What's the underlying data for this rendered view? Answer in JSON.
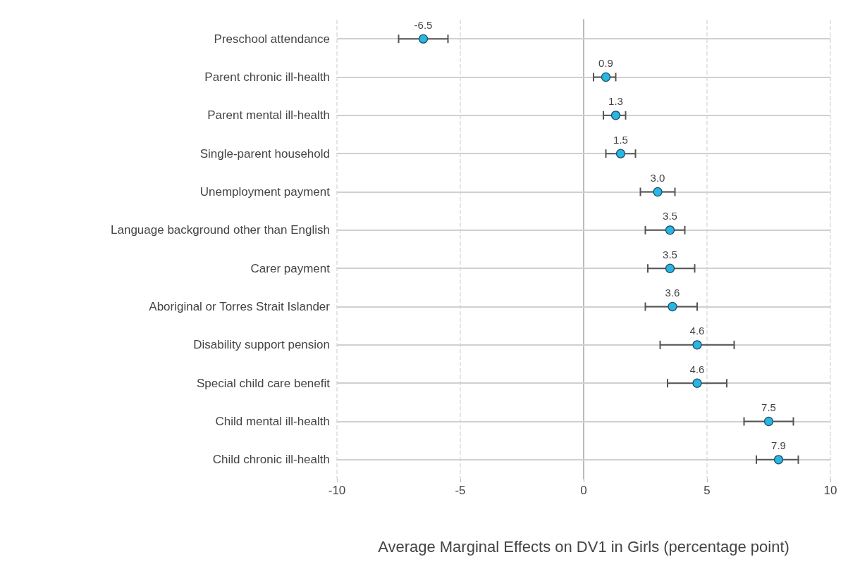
{
  "chart_data": {
    "type": "scatter",
    "orientation": "horizontal",
    "xlabel": "Average Marginal Effects on DV1 in Girls (percentage point)",
    "categories": [
      "Preschool attendance",
      "Parent chronic ill-health",
      "Parent mental ill-health",
      "Single-parent household",
      "Unemployment payment",
      "Language background other than English",
      "Carer payment",
      "Aboriginal or Torres Strait Islander",
      "Disability support pension",
      "Special child care benefit",
      "Child mental ill-health",
      "Child chronic ill-health"
    ],
    "values": [
      -6.5,
      0.9,
      1.3,
      1.5,
      3.0,
      3.5,
      3.5,
      3.6,
      4.6,
      4.6,
      7.5,
      7.9
    ],
    "value_labels": [
      "-6.5",
      "0.9",
      "1.3",
      "1.5",
      "3.0",
      "3.5",
      "3.5",
      "3.6",
      "4.6",
      "4.6",
      "7.5",
      "7.9"
    ],
    "errors": [
      [
        -7.5,
        -5.5
      ],
      [
        0.4,
        1.3
      ],
      [
        0.8,
        1.7
      ],
      [
        0.9,
        2.1
      ],
      [
        2.3,
        3.7
      ],
      [
        2.5,
        4.1
      ],
      [
        2.6,
        4.5
      ],
      [
        2.5,
        4.6
      ],
      [
        3.1,
        6.1
      ],
      [
        3.4,
        5.8
      ],
      [
        6.5,
        8.5
      ],
      [
        7.0,
        8.7
      ]
    ],
    "color": "#29b6e3",
    "marker": "circle",
    "grid": true,
    "xlim": [
      -10,
      10
    ],
    "xticks": [
      -10,
      -5,
      0,
      5,
      10
    ]
  }
}
